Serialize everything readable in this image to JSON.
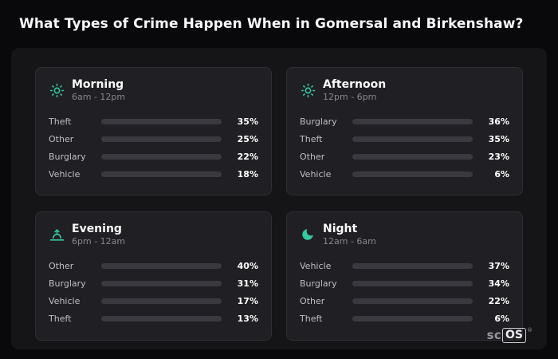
{
  "title": "What Types of Crime Happen When in Gomersal and Birkenshaw?",
  "colors": {
    "theft": "#a35cf0",
    "other": "#8e8e96",
    "burglary": "#e0832f",
    "vehicle": "#3d7de8",
    "icon_accent": "#35c9a3"
  },
  "logo": {
    "prefix": "sc",
    "suffix": "OS",
    "reg": "®"
  },
  "chart_data": {
    "type": "bar",
    "title": "What Types of Crime Happen When in Gomersal and Birkenshaw?",
    "value_unit": "%",
    "xlim": [
      0,
      100
    ],
    "groups": [
      {
        "name": "Morning",
        "time_range": "6am - 12pm",
        "icon": "sun-icon",
        "rows": [
          {
            "label": "Theft",
            "value": 35,
            "display": "35%"
          },
          {
            "label": "Other",
            "value": 25,
            "display": "25%"
          },
          {
            "label": "Burglary",
            "value": 22,
            "display": "22%"
          },
          {
            "label": "Vehicle",
            "value": 18,
            "display": "18%"
          }
        ]
      },
      {
        "name": "Afternoon",
        "time_range": "12pm - 6pm",
        "icon": "sun-icon",
        "rows": [
          {
            "label": "Burglary",
            "value": 36,
            "display": "36%"
          },
          {
            "label": "Theft",
            "value": 35,
            "display": "35%"
          },
          {
            "label": "Other",
            "value": 23,
            "display": "23%"
          },
          {
            "label": "Vehicle",
            "value": 6,
            "display": "6%"
          }
        ]
      },
      {
        "name": "Evening",
        "time_range": "6pm - 12am",
        "icon": "sunset-icon",
        "rows": [
          {
            "label": "Other",
            "value": 40,
            "display": "40%"
          },
          {
            "label": "Burglary",
            "value": 31,
            "display": "31%"
          },
          {
            "label": "Vehicle",
            "value": 17,
            "display": "17%"
          },
          {
            "label": "Theft",
            "value": 13,
            "display": "13%"
          }
        ]
      },
      {
        "name": "Night",
        "time_range": "12am - 6am",
        "icon": "moon-icon",
        "rows": [
          {
            "label": "Vehicle",
            "value": 37,
            "display": "37%"
          },
          {
            "label": "Burglary",
            "value": 34,
            "display": "34%"
          },
          {
            "label": "Other",
            "value": 22,
            "display": "22%"
          },
          {
            "label": "Theft",
            "value": 6,
            "display": "6%"
          }
        ]
      }
    ]
  }
}
